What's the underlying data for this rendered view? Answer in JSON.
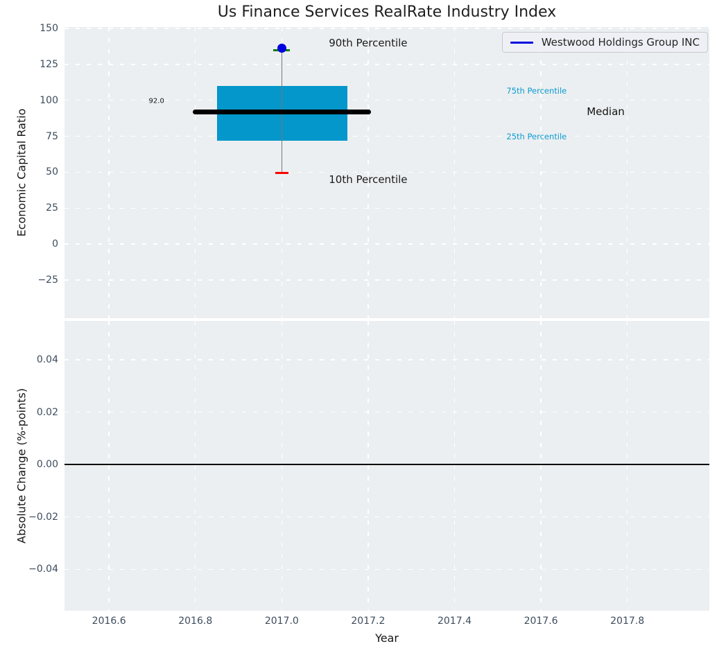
{
  "title": "Us Finance Services RealRate Industry Index",
  "legend": {
    "label": "Westwood Holdings Group INC",
    "line_color": "#0000e0"
  },
  "colors": {
    "axes_background": "#eceff1",
    "grid": "#ffffff",
    "box_fill": "#0397cb",
    "median_line": "#000000",
    "whisker": "#777777",
    "cap_top": "#008000",
    "cap_bottom": "#ff0000",
    "company_point": "#0000e0",
    "zero_line": "#000000",
    "tick_label": "#3d4c5d",
    "percentile_label": "#0a9bd0"
  },
  "chart_data": [
    {
      "type": "boxplot",
      "title": "Us Finance Services RealRate Industry Index",
      "ylabel": "Economic Capital Ratio",
      "xlim": [
        2016.497,
        2017.99
      ],
      "ylim": [
        -51.6,
        151.0
      ],
      "grid": true,
      "legend_position": "upper right",
      "yticks": [
        {
          "v": 150,
          "label": "150"
        },
        {
          "v": 125,
          "label": "125"
        },
        {
          "v": 100,
          "label": "100"
        },
        {
          "v": 75,
          "label": "75"
        },
        {
          "v": 50,
          "label": "50"
        },
        {
          "v": 25,
          "label": "25"
        },
        {
          "v": 0,
          "label": "0"
        },
        {
          "v": -25,
          "label": "−25"
        }
      ],
      "xticks": [
        {
          "v": 2016.6,
          "label": "2016.6"
        },
        {
          "v": 2016.8,
          "label": "2016.8"
        },
        {
          "v": 2017.0,
          "label": "2017.0"
        },
        {
          "v": 2017.2,
          "label": "2017.2"
        },
        {
          "v": 2017.4,
          "label": "2017.4"
        },
        {
          "v": 2017.6,
          "label": "2017.6"
        },
        {
          "v": 2017.8,
          "label": "2017.8"
        }
      ],
      "box": {
        "x": 2017.0,
        "median": 92.0,
        "q1": 72.0,
        "q3": 110.0,
        "p10": 49.5,
        "p90": 135.0,
        "company_value": 136.5,
        "box_x0": 2016.85,
        "box_x1": 2017.152,
        "median_x0": 2016.794,
        "median_x1": 2017.207,
        "cap_width_top": 0.039,
        "cap_width_bottom": 0.031
      },
      "annotations": [
        {
          "text": "90th Percentile",
          "x": 2017.2,
          "y": 140.0,
          "size": 15,
          "color": "#1a1a1a"
        },
        {
          "text": "10th Percentile",
          "x": 2017.2,
          "y": 45.0,
          "size": 15,
          "color": "#1a1a1a"
        },
        {
          "text": "75th Percentile",
          "x": 2017.59,
          "y": 106.6,
          "size": 11.5,
          "color": "#0a9bd0"
        },
        {
          "text": "25th Percentile",
          "x": 2017.59,
          "y": 75.0,
          "size": 11.5,
          "color": "#0a9bd0"
        },
        {
          "text": "Median",
          "x": 2017.75,
          "y": 92.2,
          "size": 15,
          "color": "#111111"
        },
        {
          "text": "92.0",
          "x": 2016.71,
          "y": 99.4,
          "size": 10,
          "color": "#111111"
        }
      ]
    },
    {
      "type": "line",
      "ylabel": "Absolute Change (%-points)",
      "xlabel": "Year",
      "xlim": [
        2016.497,
        2017.99
      ],
      "ylim": [
        -0.0558,
        0.0548
      ],
      "grid": true,
      "yticks": [
        {
          "v": 0.04,
          "label": "0.04"
        },
        {
          "v": 0.02,
          "label": "0.02"
        },
        {
          "v": 0.0,
          "label": "0.00"
        },
        {
          "v": -0.02,
          "label": "−0.02"
        },
        {
          "v": -0.04,
          "label": "−0.04"
        }
      ],
      "xticks": [
        {
          "v": 2016.6,
          "label": "2016.6"
        },
        {
          "v": 2016.8,
          "label": "2016.8"
        },
        {
          "v": 2017.0,
          "label": "2017.0"
        },
        {
          "v": 2017.2,
          "label": "2017.2"
        },
        {
          "v": 2017.4,
          "label": "2017.4"
        },
        {
          "v": 2017.6,
          "label": "2017.6"
        },
        {
          "v": 2017.8,
          "label": "2017.8"
        }
      ],
      "zero_line": 0.0,
      "series": [
        {
          "name": "Westwood Holdings Group INC",
          "x": [
            2017.0
          ],
          "y": [
            0.0
          ],
          "visible_points": 0
        }
      ]
    }
  ]
}
